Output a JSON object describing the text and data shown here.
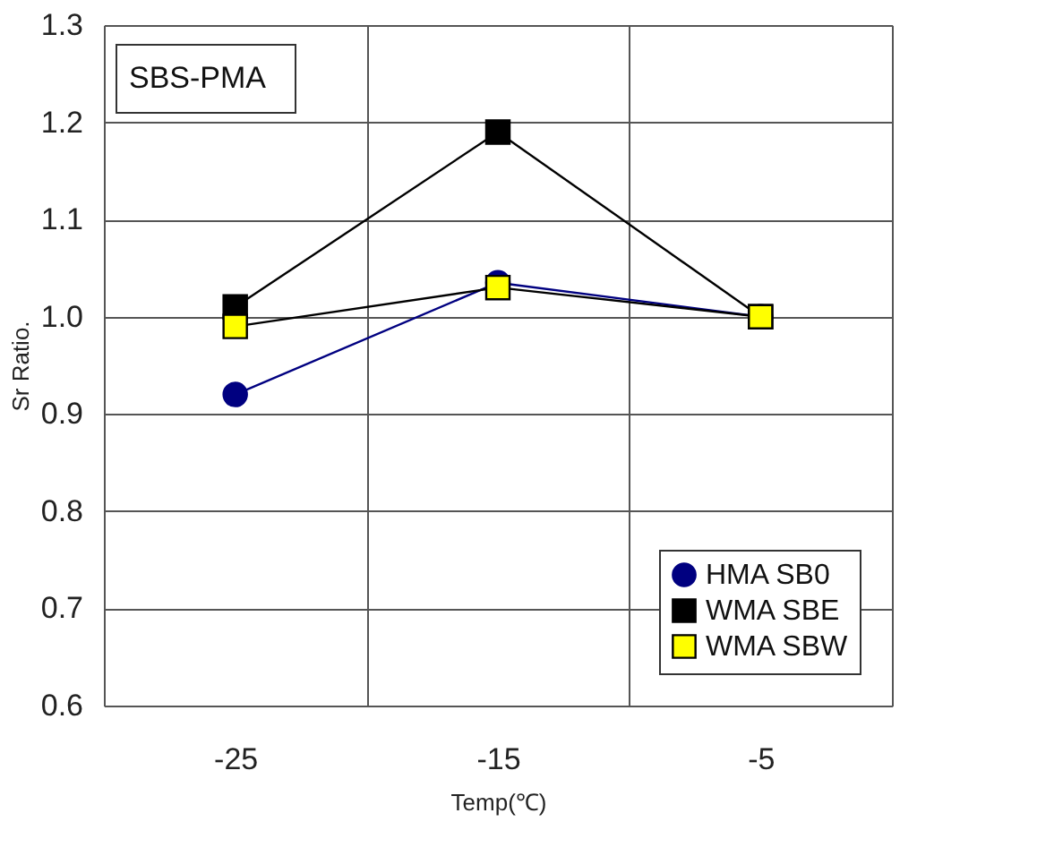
{
  "chart_data": {
    "type": "line",
    "xlabel": "Temp(℃)",
    "ylabel": "Sr Ratio.",
    "categories": [
      "-25",
      "-15",
      "-5"
    ],
    "series": [
      {
        "name": "HMA SB0",
        "color": "#000080",
        "marker": "circle",
        "values": [
          0.92,
          1.035,
          1.0
        ]
      },
      {
        "name": "WMA SBE",
        "color": "#000000",
        "marker": "square",
        "values": [
          1.01,
          1.19,
          1.0
        ]
      },
      {
        "name": "WMA SBW",
        "color": "#ffff00",
        "marker": "square",
        "values": [
          0.99,
          1.03,
          1.0
        ]
      }
    ],
    "ylim": [
      0.6,
      1.3
    ],
    "yticks": [
      0.6,
      0.7,
      0.8,
      0.9,
      {
        "value": 1.0,
        "label": "1.0"
      },
      1.1,
      1.2,
      1.3
    ],
    "grid": true,
    "legend": "bottom right",
    "line_style": "solid",
    "annotations": [
      "SBS-PMA"
    ]
  }
}
